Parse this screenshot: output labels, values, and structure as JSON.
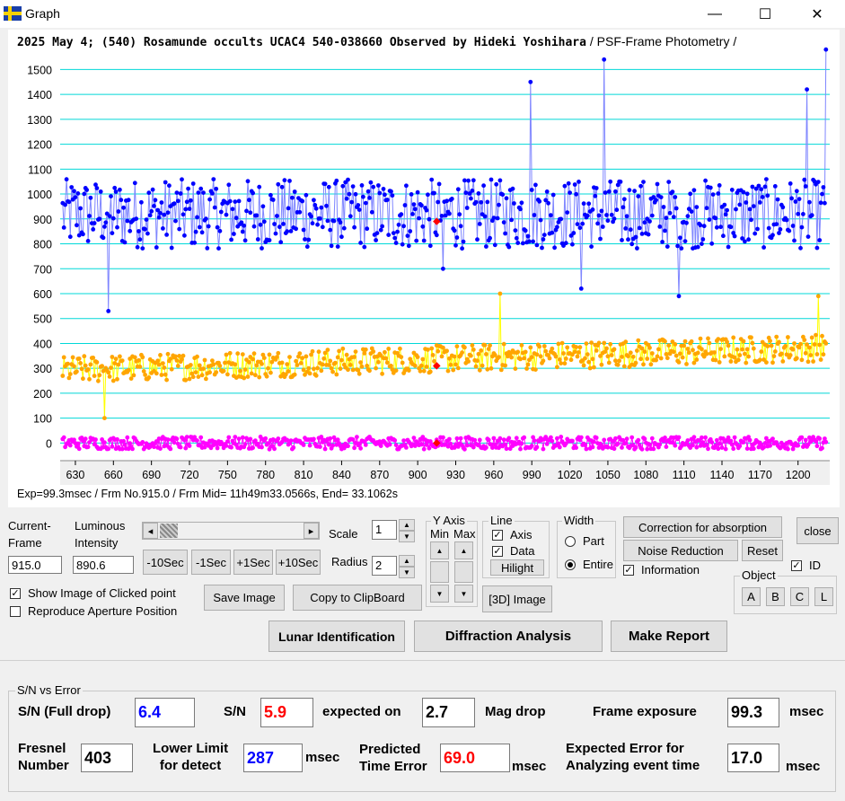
{
  "window": {
    "title": "Graph",
    "minimize_glyph": "—",
    "maximize_glyph": "☐",
    "close_glyph": "✕",
    "app_icon": "sweden-flag-icon",
    "app_icon_colors": {
      "blue": "#1a3fa8",
      "yellow": "#f7d200"
    }
  },
  "chart": {
    "title_main": "2025 May 4; (540) Rosamunde occults UCAC4 540-038660 Observed by Hideki Yoshihara",
    "title_sub": " / PSF-Frame Photometry /",
    "status_line": "Exp=99.3msec / Frm No.915.0 / Frm Mid= 11h49m33.0566s,  End= 33.1062s"
  },
  "chart_data": {
    "type": "line",
    "title": "2025 May 4; (540) Rosamunde occults UCAC4 540-038660 Observed by Hideki Yoshihara / PSF-Frame Photometry /",
    "x_ticks": [
      630,
      660,
      690,
      720,
      750,
      780,
      810,
      840,
      870,
      900,
      930,
      960,
      990,
      1020,
      1050,
      1080,
      1110,
      1140,
      1170,
      1200
    ],
    "y_ticks": [
      0,
      100,
      200,
      300,
      400,
      500,
      600,
      700,
      800,
      900,
      1000,
      1100,
      1200,
      1300,
      1400,
      1500
    ],
    "xlim": [
      618,
      1225
    ],
    "ylim": [
      -60,
      1570
    ],
    "grid": "horizontal",
    "highlighted_frame": 915,
    "series": [
      {
        "color": "#0000ff",
        "line_color": "#7f86ff",
        "mean": 920,
        "spread": 140,
        "spikes": [
          [
            656,
            530
          ],
          [
            989,
            1450
          ],
          [
            1047,
            1540
          ],
          [
            1207,
            1420
          ],
          [
            1222,
            1580
          ],
          [
            920,
            700
          ],
          [
            1029,
            620
          ],
          [
            1106,
            590
          ]
        ]
      },
      {
        "color": "#ffa500",
        "line_color": "#ffff00",
        "mean": 320,
        "spread": 55,
        "drift": 90,
        "spikes": [
          [
            653,
            100
          ],
          [
            965,
            600
          ],
          [
            1216,
            590
          ]
        ]
      },
      {
        "color": "#ff00ff",
        "line_color": "#ff00ff",
        "mean": 0,
        "spread": 25,
        "spikes": []
      }
    ],
    "markers": [
      {
        "x": 915,
        "y": 890,
        "color": "#ff0000"
      },
      {
        "x": 915,
        "y": 310,
        "color": "#ff0000"
      },
      {
        "x": 915,
        "y": 0,
        "color": "#ff0000"
      }
    ]
  },
  "controls": {
    "current_frame_label": "Current-\nFrame",
    "current_frame_value": "915.0",
    "luminous_label": "Luminous\nIntensity",
    "luminous_value": "890.6",
    "scroll_left": "◂",
    "scroll_right": "▸",
    "scale_label": "Scale",
    "scale_value": "1",
    "radius_label": "Radius",
    "radius_value": "2",
    "btn_m10": "-10Sec",
    "btn_m1": "-1Sec",
    "btn_p1": "+1Sec",
    "btn_p10": "+10Sec",
    "yaxis_title": "Y Axis",
    "yaxis_min": "Min",
    "yaxis_max": "Max",
    "line_title": "Line",
    "line_axis": "Axis",
    "line_data": "Data",
    "hilight": "Hilight",
    "width_title": "Width",
    "width_part": "Part",
    "width_entire": "Entire",
    "correction": "Correction for absorption",
    "close": "close",
    "noise": "Noise Reduction",
    "reset": "Reset",
    "information": "Information",
    "id_label": "ID",
    "object_title": "Object",
    "objects": [
      "A",
      "B",
      "C",
      "L"
    ],
    "show_image": "Show Image of Clicked point",
    "reproduce": "Reproduce Aperture Position",
    "save_image": "Save Image",
    "copy_clip": "Copy to ClipBoard",
    "image3d": "[3D] Image",
    "lunar": "Lunar Identification",
    "diffraction": "Diffraction Analysis",
    "make_report": "Make Report"
  },
  "sn": {
    "group_title": "S/N vs Error",
    "full_drop_label": "S/N (Full drop)",
    "full_drop_value": "6.4",
    "sn_label": "S/N",
    "sn_value": "5.9",
    "expected_on": "expected on",
    "mag_drop_value": "2.7",
    "mag_drop_label": "Mag drop",
    "frame_exposure_label": "Frame exposure",
    "frame_exposure_value": "99.3",
    "msec": "msec",
    "fresnel_label": "Fresnel\nNumber",
    "fresnel_value": "403",
    "lower_limit_label": "Lower Limit\nfor detect",
    "lower_limit_value": "287",
    "predicted_label": "Predicted\nTime Error",
    "predicted_value": "69.0",
    "expected_error_label": "Expected Error for\nAnalyzing event time",
    "expected_error_value": "17.0",
    "blue": "#0000ff",
    "red": "#ff0000"
  }
}
